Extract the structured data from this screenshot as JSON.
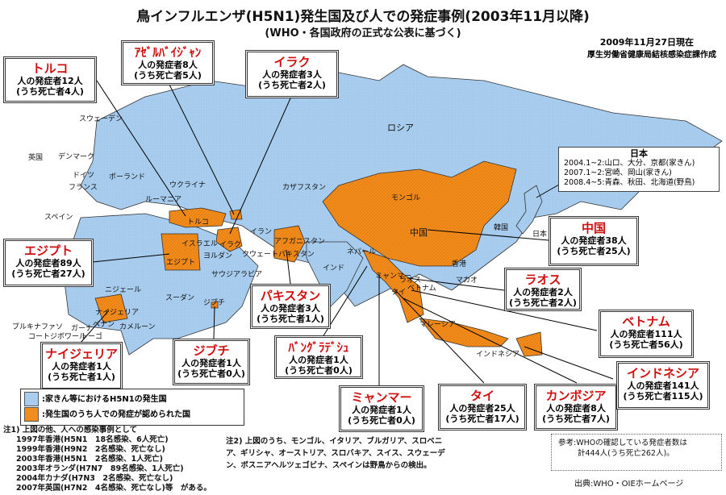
{
  "title": "鳥インフルエンザ(H5N1)発生国及び人での発症事例(2003年11月以降)",
  "subtitle": "(WHO・各国政府の正式な公表に基づく)",
  "date": "2009年11月27日現在",
  "author": "厚生労働省健康局結核感染症課作成",
  "colors": {
    "poultry": "#a9cdee",
    "human": "#f28c1c",
    "callout_name": "#d01010"
  },
  "callouts": [
    {
      "id": "turkey",
      "name": "トルコ",
      "cases": "人の発症者12人",
      "deaths": "(うち死亡者4人)"
    },
    {
      "id": "azerbaijan",
      "name": "ｱｾﾞﾙﾊﾞｲｼﾞｬﾝ",
      "cases": "人の発症者8人",
      "deaths": "(うち死亡者5人)"
    },
    {
      "id": "iraq",
      "name": "イラク",
      "cases": "人の発症者3人",
      "deaths": "(うち死亡者2人)"
    },
    {
      "id": "egypt",
      "name": "エジプト",
      "cases": "人の発症者89人",
      "deaths": "(うち死亡者27人)"
    },
    {
      "id": "nigeria",
      "name": "ナイジェリア",
      "cases": "人の発症者1人",
      "deaths": "(うち死亡者1人)"
    },
    {
      "id": "djibouti",
      "name": "ジブチ",
      "cases": "人の発症者1人",
      "deaths": "(うち死亡者0人)"
    },
    {
      "id": "pakistan",
      "name": "パキスタン",
      "cases": "人の発症者3人",
      "deaths": "(うち死亡者1人)"
    },
    {
      "id": "bangladesh",
      "name": "ﾊﾞﾝｸﾞﾗﾃﾞｼｭ",
      "cases": "人の発症者1人",
      "deaths": "(うち死亡者0人)"
    },
    {
      "id": "myanmar",
      "name": "ミャンマー",
      "cases": "人の発症者1人",
      "deaths": "(うち死亡者0人)"
    },
    {
      "id": "thailand",
      "name": "タイ",
      "cases": "人の発症者25人",
      "deaths": "(うち死亡者17人)"
    },
    {
      "id": "cambodia",
      "name": "カンボジア",
      "cases": "人の発症者8人",
      "deaths": "(うち死亡者7人)"
    },
    {
      "id": "indonesia",
      "name": "インドネシア",
      "cases": "人の発症者141人",
      "deaths": "(うち死亡者115人)"
    },
    {
      "id": "vietnam",
      "name": "ベトナム",
      "cases": "人の発症者111人",
      "deaths": "(うち死亡者56人)"
    },
    {
      "id": "laos",
      "name": "ラオス",
      "cases": "人の発症者2人",
      "deaths": "(うち死亡者2人)"
    },
    {
      "id": "china",
      "name": "中国",
      "cases": "人の発症者38人",
      "deaths": "(うち死亡者25人)"
    }
  ],
  "japan": {
    "name": "日本",
    "lines": [
      "2004.1~2:山口、大分、京都(家きん)",
      "2007.1~2:宮崎、岡山(家きん)",
      "2008.4~5:青森、秋田、北海道(野鳥)"
    ]
  },
  "map_labels": [
    "ロシア",
    "カザフスタン",
    "モンゴル",
    "中国",
    "インド",
    "韓国",
    "日本",
    "香港",
    "マカオ",
    "マレーシア",
    "インドネシア",
    "ウクライナ",
    "ルーマニア",
    "トルコ",
    "イラン",
    "イラク",
    "エジプト",
    "サウジアラビア",
    "スーダン",
    "ニジェール",
    "ナイジェリア",
    "ブルキナファソ",
    "コートジボワール",
    "ガーナ",
    "トーゴ",
    "ベナン",
    "カメルーン",
    "アフガニスタン",
    "パキスタン",
    "ネパール",
    "ミャンマー",
    "ラオス",
    "タイ",
    "ベトナム",
    "スウェーデン",
    "デンマーク",
    "英国",
    "ドイツ",
    "フランス",
    "スペイン",
    "ポーランド",
    "ジブチ",
    "イスラエル",
    "クウェート",
    "ヨルダン"
  ],
  "legend": [
    {
      "label": ":家きん等におけるH5N1の発生国"
    },
    {
      "label": ":発生国のうち人での発症が認められた国"
    }
  ],
  "note1": {
    "lines": [
      "注1) 上図の他、人への感染事例として",
      "1997年香港(H5N1　18名感染、6人死亡)",
      "1999年香港(H9N2　2名感染、死亡なし)",
      "2003年香港(H5N1　2名感染、1人死亡)",
      "2003年オランダ(H7N7　89名感染、1人死亡)",
      "2004年カナダ(H7N3　2名感染、死亡なし)",
      "2007年英国(H7N2　4名感染、死亡なし)等　がある。"
    ]
  },
  "note2": {
    "lines": [
      "注2) 上図のうち、モンゴル、イタリア、ブルガリア、スロベニ",
      "ア、ギリシャ、オーストリア、スロバキア、スイス、スウェーデ",
      "ン、ボスニアヘルツェゴビナ、スペインは野鳥からの検出。"
    ]
  },
  "reference": {
    "lines": [
      "参考:WHOの確認している発症者数は",
      "計444人(うち死亡262人)。"
    ]
  },
  "source": "出典:WHO・OIEホームページ"
}
